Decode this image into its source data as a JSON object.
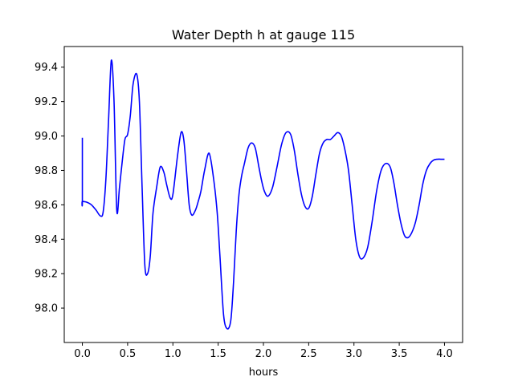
{
  "chart_data": {
    "type": "line",
    "title": "Water Depth h at gauge 115",
    "xlabel": "hours",
    "ylabel": "",
    "xlim": [
      -0.2,
      4.2
    ],
    "ylim": [
      97.8,
      99.52
    ],
    "xticks": [
      "0.0",
      "0.5",
      "1.0",
      "1.5",
      "2.0",
      "2.5",
      "3.0",
      "3.5",
      "4.0"
    ],
    "yticks": [
      "98.0",
      "98.2",
      "98.4",
      "98.6",
      "98.8",
      "99.0",
      "99.2",
      "99.4"
    ],
    "grid": false,
    "series": [
      {
        "color": "#0000ff",
        "x": [
          0.0,
          0.0,
          0.0,
          0.05,
          0.1,
          0.15,
          0.2,
          0.23,
          0.26,
          0.29,
          0.32,
          0.35,
          0.38,
          0.41,
          0.44,
          0.47,
          0.5,
          0.53,
          0.56,
          0.6,
          0.63,
          0.66,
          0.69,
          0.72,
          0.75,
          0.78,
          0.82,
          0.86,
          0.9,
          0.93,
          0.97,
          1.0,
          1.05,
          1.09,
          1.12,
          1.15,
          1.18,
          1.21,
          1.25,
          1.28,
          1.31,
          1.35,
          1.4,
          1.45,
          1.49,
          1.52,
          1.56,
          1.6,
          1.64,
          1.67,
          1.7,
          1.73,
          1.76,
          1.79,
          1.83,
          1.87,
          1.91,
          1.95,
          1.98,
          2.01,
          2.05,
          2.1,
          2.15,
          2.2,
          2.25,
          2.3,
          2.34,
          2.38,
          2.42,
          2.46,
          2.5,
          2.54,
          2.58,
          2.62,
          2.66,
          2.7,
          2.74,
          2.78,
          2.82,
          2.86,
          2.9,
          2.94,
          2.98,
          3.02,
          3.06,
          3.1,
          3.15,
          3.2,
          3.25,
          3.3,
          3.35,
          3.4,
          3.44,
          3.48,
          3.52,
          3.56,
          3.6,
          3.64,
          3.68,
          3.72,
          3.76,
          3.8,
          3.84,
          3.88,
          3.92,
          3.96,
          4.0
        ],
        "y": [
          98.99,
          98.62,
          98.62,
          98.615,
          98.6,
          98.57,
          98.535,
          98.56,
          98.75,
          99.1,
          99.44,
          99.2,
          98.57,
          98.7,
          98.85,
          98.98,
          99.01,
          99.12,
          99.3,
          99.36,
          99.2,
          98.7,
          98.25,
          98.2,
          98.3,
          98.55,
          98.7,
          98.82,
          98.79,
          98.72,
          98.64,
          98.66,
          98.88,
          99.02,
          98.98,
          98.8,
          98.6,
          98.54,
          98.57,
          98.62,
          98.68,
          98.8,
          98.9,
          98.75,
          98.55,
          98.3,
          97.96,
          97.88,
          97.93,
          98.15,
          98.45,
          98.66,
          98.77,
          98.84,
          98.93,
          98.96,
          98.93,
          98.82,
          98.74,
          98.68,
          98.65,
          98.7,
          98.82,
          98.95,
          99.02,
          99.01,
          98.92,
          98.78,
          98.66,
          98.59,
          98.58,
          98.65,
          98.78,
          98.9,
          98.96,
          98.98,
          98.98,
          99.0,
          99.02,
          99.0,
          98.92,
          98.8,
          98.6,
          98.4,
          98.3,
          98.29,
          98.35,
          98.5,
          98.68,
          98.8,
          98.84,
          98.82,
          98.73,
          98.6,
          98.49,
          98.42,
          98.41,
          98.44,
          98.5,
          98.6,
          98.72,
          98.8,
          98.84,
          98.86,
          98.865,
          98.865,
          98.865
        ]
      }
    ]
  }
}
